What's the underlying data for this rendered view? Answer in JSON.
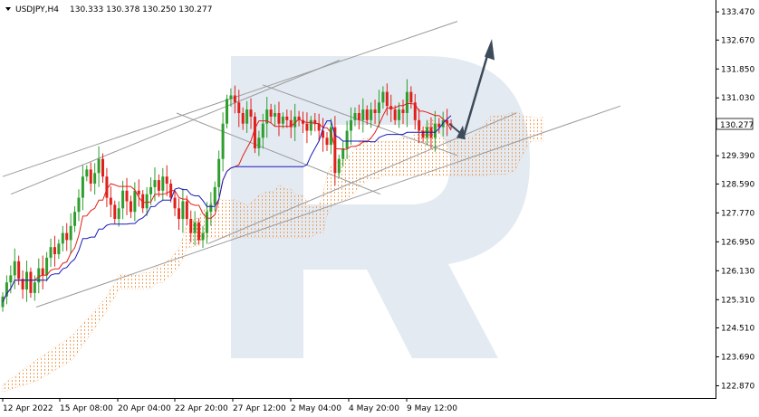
{
  "header": {
    "symbol_timeframe": "USDJPY,H4",
    "ohlc": "130.333 130.378 130.250 130.277"
  },
  "current_price_label": "130.277",
  "colors": {
    "bull": "#2e9e2e",
    "bear": "#e0201b",
    "tenkan": "#e0201b",
    "kijun": "#1b1bbd",
    "cloud": "#f0a15a",
    "channel": "#9a9a9a",
    "arrow": "#3c4a5a",
    "watermark": "#e3eaf2"
  },
  "chart_data": {
    "type": "candlestick",
    "symbol": "USDJPY",
    "timeframe": "H4",
    "ylim": [
      122.6,
      133.6
    ],
    "y_ticks": [
      "133.470",
      "132.670",
      "131.850",
      "131.030",
      "130.277",
      "129.390",
      "128.590",
      "127.770",
      "126.950",
      "126.130",
      "125.310",
      "124.510",
      "123.690",
      "122.870"
    ],
    "x_ticks": [
      "12 Apr 2022",
      "15 Apr 08:00",
      "20 Apr 04:00",
      "22 Apr 20:00",
      "27 Apr 12:00",
      "2 May 04:00",
      "4 May 20:00",
      "9 May 12:00"
    ],
    "closes": [
      125.4,
      125.8,
      126.0,
      126.4,
      125.9,
      125.6,
      126.1,
      125.5,
      125.8,
      126.2,
      126.0,
      126.5,
      126.8,
      126.6,
      126.9,
      127.2,
      127.0,
      127.4,
      127.8,
      128.2,
      128.8,
      129.0,
      128.6,
      128.9,
      129.3,
      128.8,
      128.2,
      128.0,
      127.6,
      127.9,
      128.4,
      128.1,
      127.8,
      128.4,
      128.3,
      127.9,
      128.3,
      128.5,
      128.7,
      128.4,
      128.8,
      128.6,
      128.2,
      127.9,
      127.6,
      128.1,
      127.6,
      127.2,
      127.5,
      127.0,
      127.2,
      127.8,
      128.0,
      128.5,
      129.3,
      130.3,
      131.0,
      131.1,
      130.9,
      130.6,
      130.3,
      130.7,
      130.5,
      129.6,
      129.9,
      130.3,
      130.7,
      130.5,
      130.6,
      130.3,
      130.5,
      130.4,
      130.2,
      130.5,
      130.4,
      130.3,
      130.1,
      130.4,
      130.3,
      130.1,
      129.9,
      129.7,
      130.2,
      128.9,
      129.3,
      129.6,
      130.1,
      130.4,
      130.6,
      130.4,
      130.7,
      130.4,
      130.7,
      130.6,
      130.9,
      131.2,
      130.8,
      130.7,
      130.4,
      130.7,
      130.6,
      131.2,
      130.9,
      130.4,
      130.1,
      129.9,
      130.2,
      129.9,
      130.3,
      130.2,
      130.4,
      130.3,
      130.277
    ],
    "forecast": {
      "from": 130.0,
      "to": 132.6
    }
  }
}
